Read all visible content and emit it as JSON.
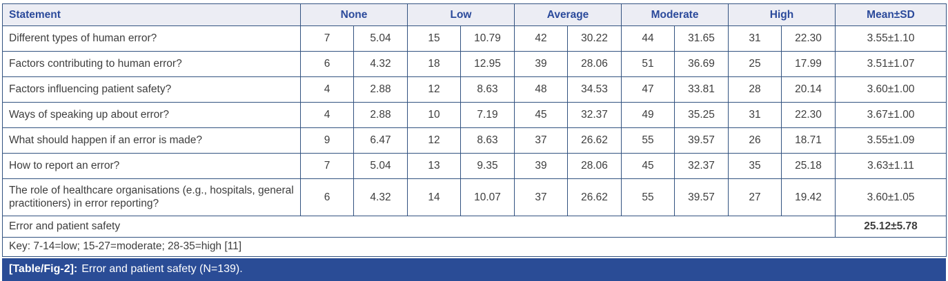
{
  "colors": {
    "border": "#31517f",
    "header_background": "#ecedf4",
    "header_text": "#2b4a9b",
    "body_text": "#3d3d3d",
    "caption_background": "#2a4c96",
    "caption_text": "#ffffff"
  },
  "table": {
    "header": {
      "statement": "Statement",
      "groups": [
        "None",
        "Low",
        "Average",
        "Moderate",
        "High"
      ],
      "mean": "Mean±SD"
    },
    "rows": [
      {
        "statement": "Different types of human error?",
        "values": [
          "7",
          "5.04",
          "15",
          "10.79",
          "42",
          "30.22",
          "44",
          "31.65",
          "31",
          "22.30"
        ],
        "mean": "3.55±1.10"
      },
      {
        "statement": "Factors contributing to human error?",
        "values": [
          "6",
          "4.32",
          "18",
          "12.95",
          "39",
          "28.06",
          "51",
          "36.69",
          "25",
          "17.99"
        ],
        "mean": "3.51±1.07"
      },
      {
        "statement": "Factors influencing patient safety?",
        "values": [
          "4",
          "2.88",
          "12",
          "8.63",
          "48",
          "34.53",
          "47",
          "33.81",
          "28",
          "20.14"
        ],
        "mean": "3.60±1.00"
      },
      {
        "statement": "Ways of speaking up about error?",
        "values": [
          "4",
          "2.88",
          "10",
          "7.19",
          "45",
          "32.37",
          "49",
          "35.25",
          "31",
          "22.30"
        ],
        "mean": "3.67±1.00"
      },
      {
        "statement": "What should happen if an error is made?",
        "values": [
          "9",
          "6.47",
          "12",
          "8.63",
          "37",
          "26.62",
          "55",
          "39.57",
          "26",
          "18.71"
        ],
        "mean": "3.55±1.09"
      },
      {
        "statement": "How to report an error?",
        "values": [
          "7",
          "5.04",
          "13",
          "9.35",
          "39",
          "28.06",
          "45",
          "32.37",
          "35",
          "25.18"
        ],
        "mean": "3.63±1.11"
      },
      {
        "statement": "The role of healthcare organisations (e.g., hospitals, general practitioners) in error reporting?",
        "values": [
          "6",
          "4.32",
          "14",
          "10.07",
          "37",
          "26.62",
          "55",
          "39.57",
          "27",
          "19.42"
        ],
        "mean": "3.60±1.05"
      }
    ],
    "summary": {
      "label": "Error and patient safety",
      "mean": "25.12±5.78"
    },
    "key": "Key: 7-14=low; 15-27=moderate; 28-35=high [11]"
  },
  "caption": {
    "tag": "[Table/Fig-2]:",
    "text": "Error and patient safety (N=139)."
  }
}
